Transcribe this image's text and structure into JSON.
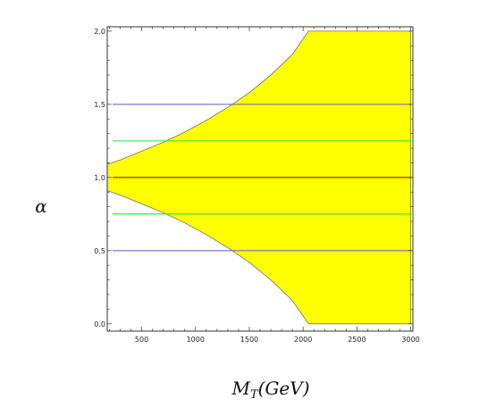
{
  "chart_data": {
    "type": "area",
    "title": "",
    "xlabel": "M_T(GeV)",
    "ylabel": "α",
    "xlim": [
      180,
      3020
    ],
    "ylim": [
      -0.05,
      2.03
    ],
    "x_ticks": [
      500,
      1000,
      1500,
      2000,
      2500,
      3000
    ],
    "x_tick_labels": [
      "500",
      "1000",
      "1500",
      "2000",
      "2500",
      "3000"
    ],
    "y_ticks": [
      0.0,
      0.5,
      1.0,
      1.5,
      2.0
    ],
    "y_tick_labels": [
      "0.0",
      "0.5",
      "1.0",
      "1.5",
      "2.0"
    ],
    "grid": false,
    "allowed_region": {
      "color": "#ffff00",
      "outline_color": "#7a7a20",
      "x": [
        180,
        300,
        500,
        700,
        900,
        1100,
        1300,
        1500,
        1700,
        1900,
        2050,
        3000
      ],
      "upper": [
        1.09,
        1.12,
        1.18,
        1.24,
        1.31,
        1.39,
        1.48,
        1.58,
        1.7,
        1.84,
        2.0,
        2.0
      ],
      "lower": [
        0.91,
        0.88,
        0.82,
        0.76,
        0.69,
        0.61,
        0.52,
        0.42,
        0.3,
        0.16,
        0.0,
        0.0
      ]
    },
    "reference_lines": [
      {
        "y": 1.5,
        "color": "#6b6bc8"
      },
      {
        "y": 1.25,
        "color": "#33dd33"
      },
      {
        "y": 1.0,
        "color": "#8b1a1a"
      },
      {
        "y": 0.75,
        "color": "#33dd33"
      },
      {
        "y": 0.5,
        "color": "#6b6bc8"
      }
    ]
  }
}
